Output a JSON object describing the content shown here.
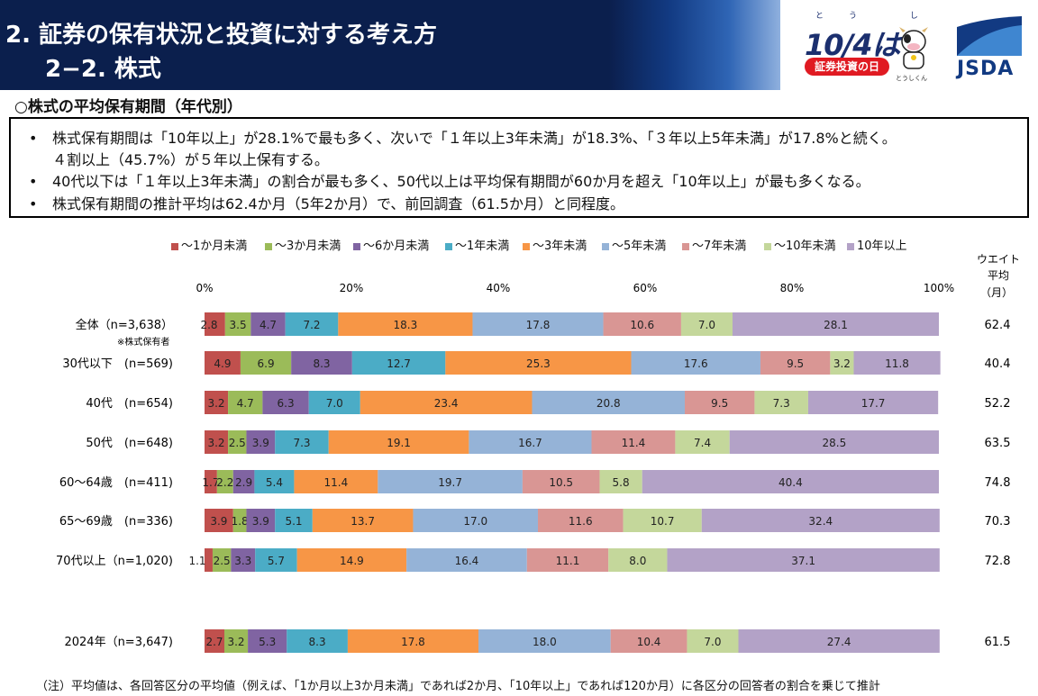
{
  "header": {
    "title_line1": "2. 証券の保有状況と投資に対する考え方",
    "title_line2": "2−2. 株式",
    "event_ruby": "とう し",
    "event_date": "10/4は",
    "event_badge": "証券投資の日",
    "mascot_caption": "とうしくん",
    "brand": "JSDA"
  },
  "subtitle": "○株式の平均保有期間（年代別）",
  "summary": {
    "bullet": "•",
    "lines": [
      "株式保有期間は「10年以上」が28.1%で最も多く、次いで「１年以上3年未満」が18.3%、「３年以上5年未満」が17.8%と続く。",
      "４割以上（45.7%）が５年以上保有する。",
      "40代以下は「１年以上3年未満」の割合が最も多く、50代以上は平均保有期間が60か月を超え「10年以上」が最も多くなる。",
      "株式保有期間の推計平均は62.4か月（5年2か月）で、前回調査（61.5か月）と同程度。"
    ]
  },
  "weight_header": [
    "ウエイト",
    "平均",
    "（月）"
  ],
  "row_note": "※株式保有者",
  "footnote": "（注）平均値は、各回答区分の平均値（例えば、「1か月以上3か月未満」であれば2か月、「10年以上」であれば120か月）に各区分の回答者の割合を乗じて推計",
  "colors": {
    "header_bg": "#0b1f4d",
    "series": [
      "#c0504d",
      "#9bbb59",
      "#8064a2",
      "#4bacc6",
      "#f79646",
      "#95b3d7",
      "#d99694",
      "#c4d79b",
      "#b3a2c7"
    ]
  },
  "chart_data": {
    "type": "bar",
    "orientation": "horizontal",
    "stacked": true,
    "x_ticks": [
      "0%",
      "20%",
      "40%",
      "60%",
      "80%",
      "100%"
    ],
    "xlim": [
      0,
      100
    ],
    "legend_position": "top",
    "grid": false,
    "categories": [
      "全体（n=3,638）",
      "30代以下　(n=569)",
      "40代　(n=654)",
      "50代　(n=648)",
      "60〜64歳　(n=411)",
      "65〜69歳　(n=336)",
      "70代以上（n=1,020)",
      "2024年（n=3,647)"
    ],
    "averages": [
      "62.4",
      "40.4",
      "52.2",
      "63.5",
      "74.8",
      "70.3",
      "72.8",
      "61.5"
    ],
    "series": [
      {
        "name": "〜1か月未満",
        "values": [
          2.8,
          4.9,
          3.2,
          3.2,
          1.7,
          3.9,
          1.1,
          2.7
        ]
      },
      {
        "name": "〜3か月未満",
        "values": [
          3.5,
          6.9,
          4.7,
          2.5,
          2.2,
          1.8,
          2.5,
          3.2
        ]
      },
      {
        "name": "〜6か月未満",
        "values": [
          4.7,
          8.3,
          6.3,
          3.9,
          2.9,
          3.9,
          3.3,
          5.3
        ]
      },
      {
        "name": "〜1年未満",
        "values": [
          7.2,
          12.7,
          7.0,
          7.3,
          5.4,
          5.1,
          5.7,
          8.3
        ]
      },
      {
        "name": "〜3年未満",
        "values": [
          18.3,
          25.3,
          23.4,
          19.1,
          11.4,
          13.7,
          14.9,
          17.8
        ]
      },
      {
        "name": "〜5年未満",
        "values": [
          17.8,
          17.6,
          20.8,
          16.7,
          19.7,
          17.0,
          16.4,
          18.0
        ]
      },
      {
        "name": "〜7年未満",
        "values": [
          10.6,
          9.5,
          9.5,
          11.4,
          10.5,
          11.6,
          11.1,
          10.4
        ]
      },
      {
        "name": "〜10年未満",
        "values": [
          7.0,
          3.2,
          7.3,
          7.4,
          5.8,
          10.7,
          8.0,
          7.0
        ]
      },
      {
        "name": "10年以上",
        "values": [
          28.1,
          11.8,
          17.7,
          28.5,
          40.4,
          32.4,
          37.1,
          27.4
        ]
      }
    ]
  }
}
